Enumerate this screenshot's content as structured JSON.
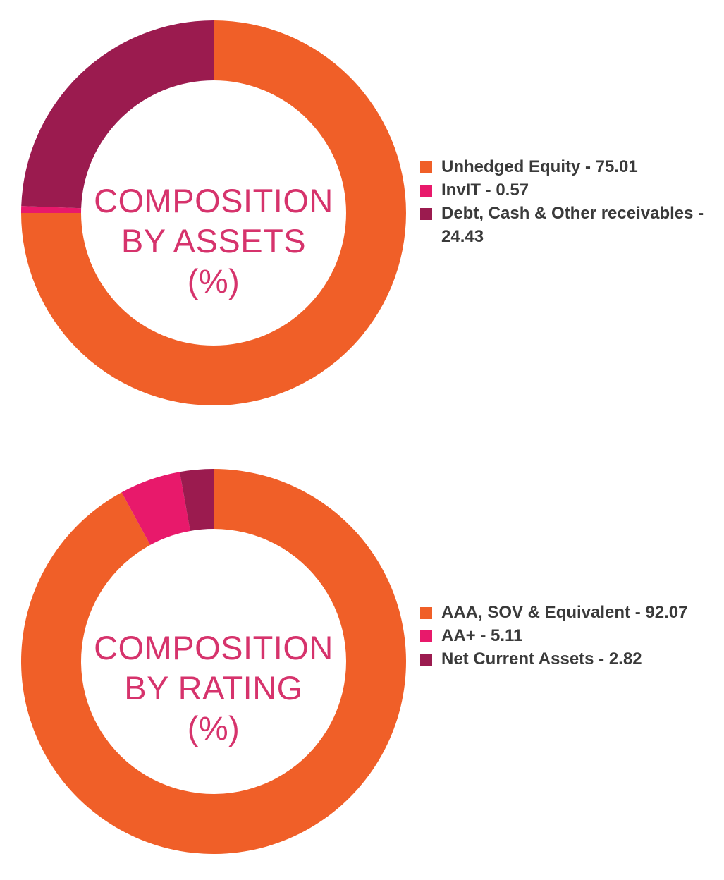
{
  "colors": {
    "orange": "#f05f28",
    "pink": "#e8196b",
    "maroon": "#9b1b4f",
    "center_text": "#d6336c",
    "legend_text": "#3a3a3a"
  },
  "chart_data": [
    {
      "type": "pie",
      "donut": true,
      "center_label": [
        "COMPOSITION",
        "BY ASSETS",
        "(%)"
      ],
      "slices": [
        {
          "label": "Unhedged Equity - 75.01",
          "value": 75.01,
          "color": "#f05f28"
        },
        {
          "label": "InvIT - 0.57",
          "value": 0.57,
          "color": "#e8196b"
        },
        {
          "label": "Debt, Cash & Other receivables - 24.43",
          "value": 24.43,
          "color": "#9b1b4f"
        }
      ],
      "legend_position": "right"
    },
    {
      "type": "pie",
      "donut": true,
      "center_label": [
        "COMPOSITION",
        "BY RATING",
        "(%)"
      ],
      "slices": [
        {
          "label": "AAA, SOV & Equivalent - 92.07",
          "value": 92.07,
          "color": "#f05f28"
        },
        {
          "label": "AA+ - 5.11",
          "value": 5.11,
          "color": "#e8196b"
        },
        {
          "label": "Net Current Assets - 2.82",
          "value": 2.82,
          "color": "#9b1b4f"
        }
      ],
      "legend_position": "right"
    }
  ]
}
